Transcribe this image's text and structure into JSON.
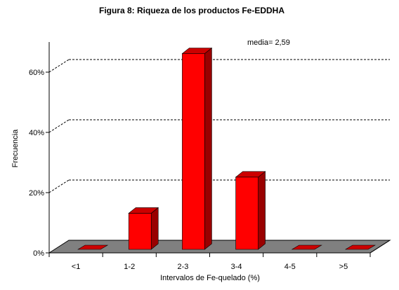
{
  "chart_data": {
    "type": "bar",
    "title": "Figura 8: Riqueza de los productos Fe-EDDHA",
    "xlabel": "Intervalos de Fe-quelado (%)",
    "ylabel": "Frecuencia",
    "categories": [
      "<1",
      "1-2",
      "2-3",
      "3-4",
      "4-5",
      ">5"
    ],
    "values": [
      0,
      12,
      65,
      24,
      0,
      0
    ],
    "ylim": [
      0,
      70
    ],
    "yticks": [
      0,
      20,
      40,
      60
    ],
    "ytick_labels": [
      "0%",
      "20%",
      "40%",
      "60%"
    ],
    "annotation": "media= 2,59",
    "grid": "horizontal dashed",
    "legend": "none",
    "three_d": true,
    "colors": {
      "bar_front": "#ff0000",
      "bar_side": "#990000",
      "bar_top": "#cc0000",
      "floor": "#808080",
      "grid": "#000000"
    }
  }
}
